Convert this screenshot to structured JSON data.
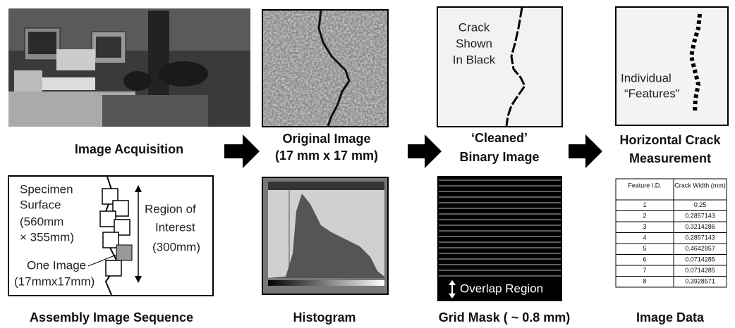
{
  "panels": {
    "acquisition": {
      "caption": "Image Acquisition"
    },
    "original": {
      "caption": [
        "Original Image",
        "(17 mm x 17 mm)"
      ]
    },
    "cleaned": {
      "caption": [
        "‘Cleaned’",
        "Binary Image"
      ],
      "annotation": [
        "Crack",
        "Shown",
        "In Black"
      ]
    },
    "measurement": {
      "caption": [
        "Horizontal Crack",
        "Measurement"
      ],
      "annotation": [
        "Individual",
        "“Features”"
      ]
    },
    "assembly": {
      "caption": "Assembly Image Sequence",
      "specimen": [
        "Specimen",
        "Surface",
        "(560mm",
        "× 355mm)"
      ],
      "region": [
        "Region of",
        "Interest",
        "(300mm)"
      ],
      "one_image": [
        "One Image",
        "(17mmx17mm)"
      ]
    },
    "histogram": {
      "caption": "Histogram"
    },
    "grid_mask": {
      "caption": "Grid Mask ( ~ 0.8 mm)",
      "annotation": "Overlap Region"
    },
    "image_data": {
      "caption": "Image Data",
      "table": {
        "header": [
          "Feature I.D.",
          "Crack Width (mm)"
        ],
        "rows": [
          [
            "1",
            "0.25"
          ],
          [
            "2",
            "0.2857143"
          ],
          [
            "3",
            "0.3214286"
          ],
          [
            "4",
            "0.2857143"
          ],
          [
            "5",
            "0.4642857"
          ],
          [
            "6",
            "0.0714285"
          ],
          [
            "7",
            "0.0714285"
          ],
          [
            "8",
            "0.3928571"
          ]
        ]
      }
    }
  }
}
